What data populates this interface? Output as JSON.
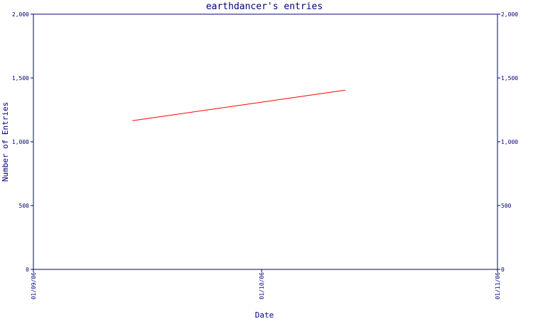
{
  "chart_data": {
    "type": "line",
    "title": "earthdancer's entries",
    "xlabel": "Date",
    "ylabel": "Number of Entries",
    "ylim": [
      0,
      2000
    ],
    "yticks": [
      0,
      500,
      1000,
      1500,
      2000
    ],
    "ytick_labels": [
      "0",
      "500",
      "1,000",
      "1,500",
      "2,000"
    ],
    "xlim": [
      "2006-09-01",
      "2006-11-01"
    ],
    "xticks": [
      "2006-09-01",
      "2006-10-01",
      "2006-11-01"
    ],
    "xtick_labels": [
      "01/09/06",
      "01/10/06",
      "01/11/06"
    ],
    "series": [
      {
        "color": "#ff0000",
        "points": [
          {
            "x": "2006-09-14",
            "y": 1165
          },
          {
            "x": "2006-10-12",
            "y": 1405
          }
        ]
      }
    ],
    "grid": false,
    "axis_color": "#00007f"
  }
}
